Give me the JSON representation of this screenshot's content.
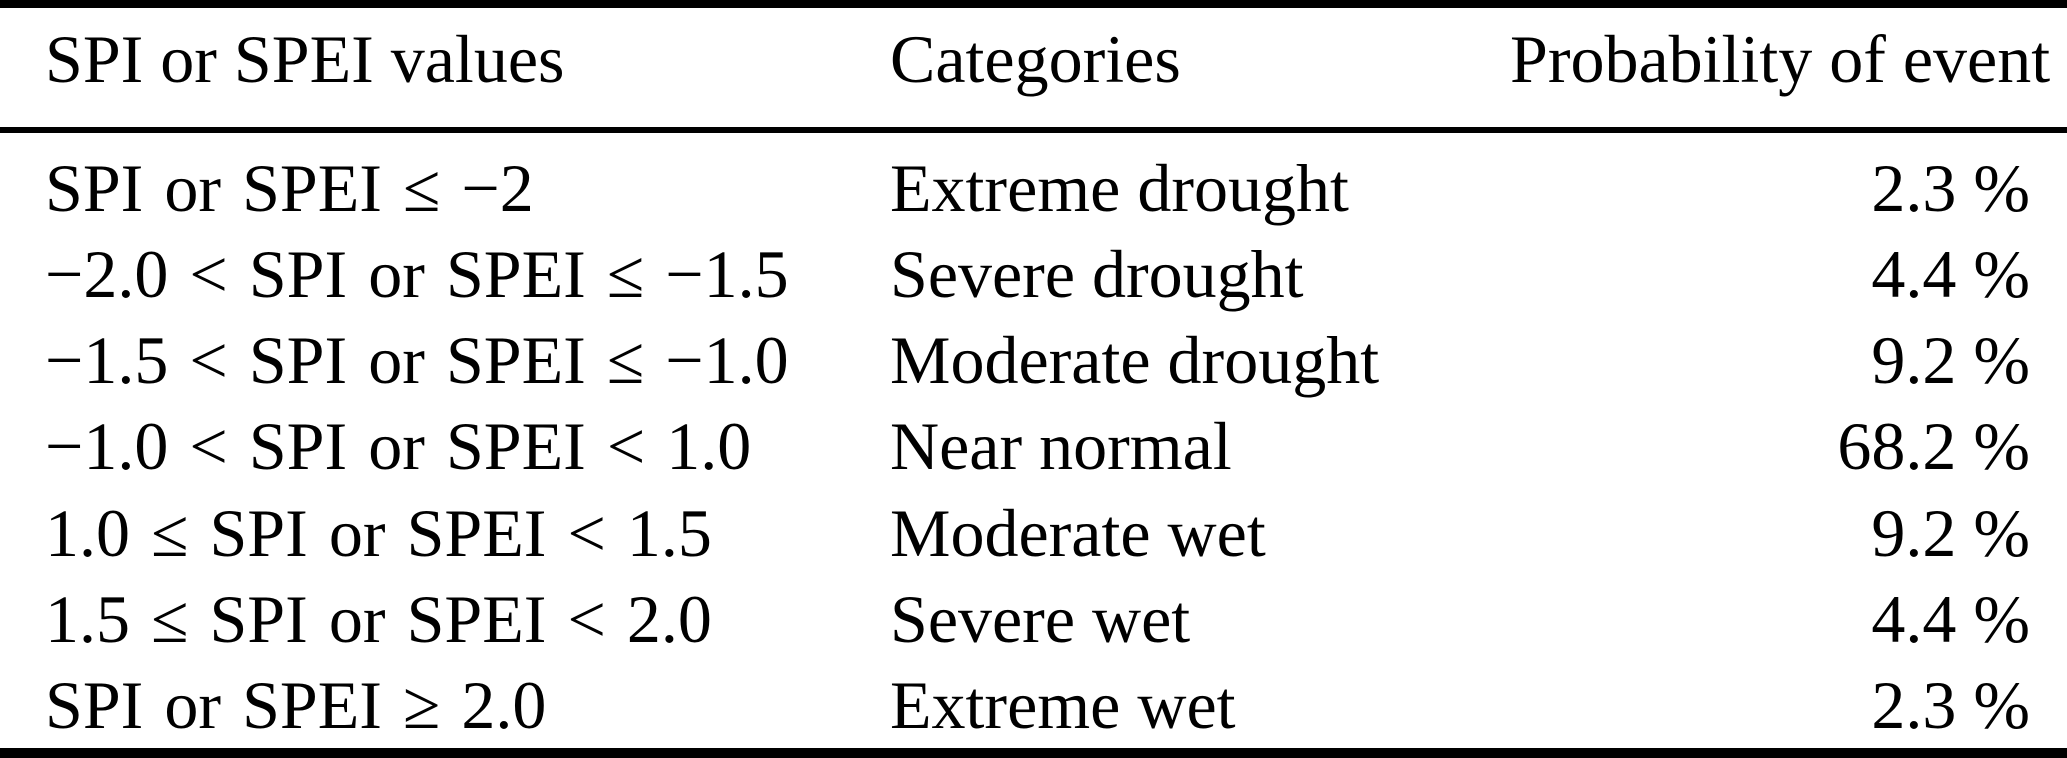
{
  "meta": {
    "background_color": "#ffffff",
    "text_color": "#000000",
    "rule_color": "#000000"
  },
  "table": {
    "columns": [
      "SPI or SPEI values",
      "Categories",
      "Probability of event"
    ],
    "rows": [
      {
        "range": "SPI or SPEI ≤ −2",
        "category": "Extreme drought",
        "probability": "2.3 %"
      },
      {
        "range": "−2.0 < SPI or SPEI ≤ −1.5",
        "category": "Severe drought",
        "probability": "4.4 %"
      },
      {
        "range": "−1.5 < SPI or SPEI ≤ −1.0",
        "category": "Moderate drought",
        "probability": "9.2 %"
      },
      {
        "range": "−1.0 < SPI or SPEI < 1.0",
        "category": "Near normal",
        "probability": "68.2 %"
      },
      {
        "range": "1.0 ≤ SPI or SPEI < 1.5",
        "category": "Moderate wet",
        "probability": "9.2 %"
      },
      {
        "range": "1.5 ≤ SPI or SPEI < 2.0",
        "category": "Severe wet",
        "probability": "4.4 %"
      },
      {
        "range": "SPI or SPEI ≥ 2.0",
        "category": "Extreme wet",
        "probability": "2.3 %"
      }
    ]
  }
}
